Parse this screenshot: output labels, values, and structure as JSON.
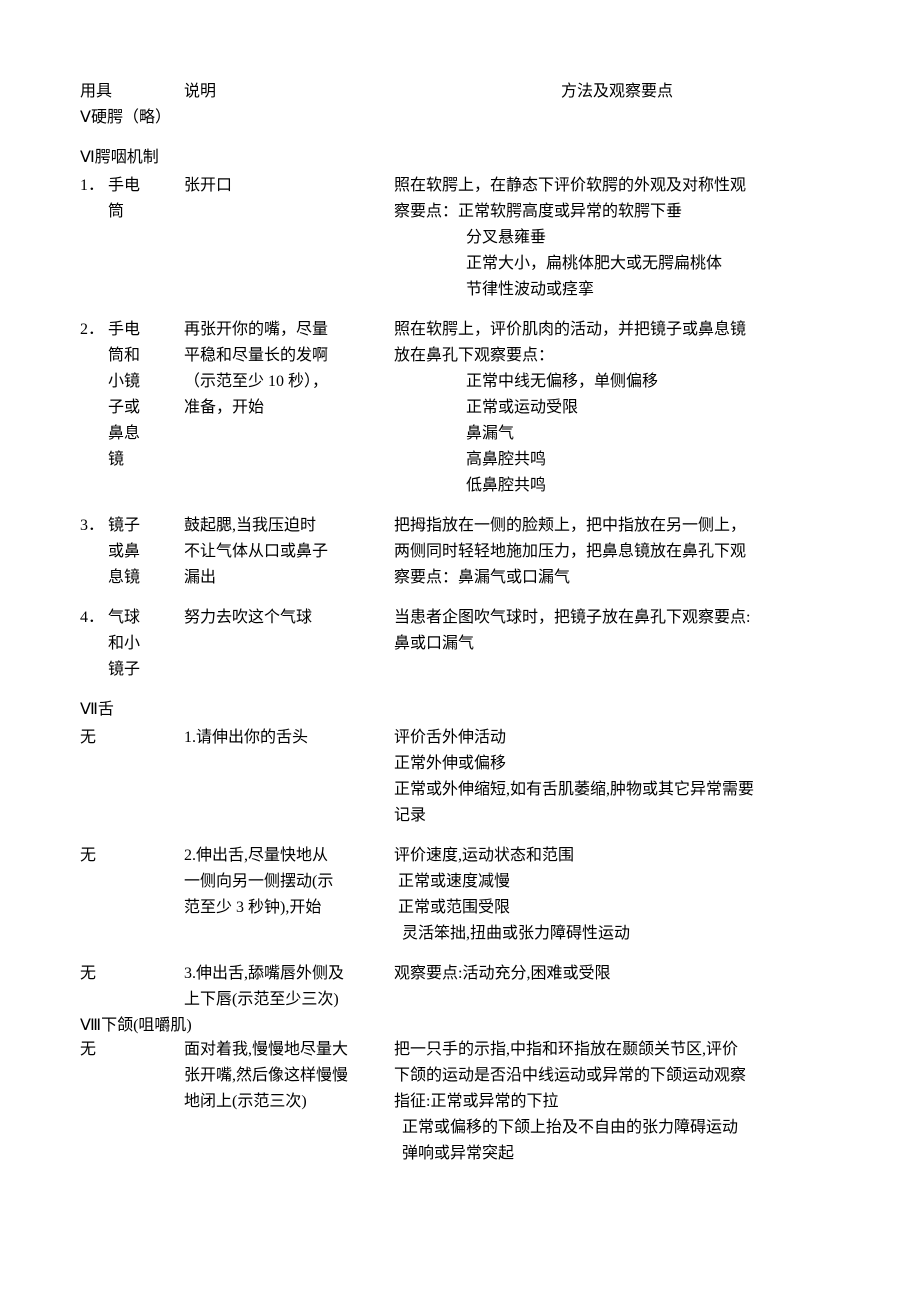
{
  "header": {
    "col1": "用具",
    "col2": "说明",
    "col3": "方法及观察要点"
  },
  "sec5": {
    "title": "Ⅴ硬腭（略）"
  },
  "sec6": {
    "title": "Ⅵ腭咽机制",
    "item1": {
      "num": "1．",
      "tool1": "手电",
      "tool2": "筒",
      "instr": "张开口",
      "m1": "照在软腭上，在静态下评价软腭的外观及对称性观",
      "m2": "察要点：正常软腭高度或异常的软腭下垂",
      "m3": "分叉悬雍垂",
      "m4": "正常大小，扁桃体肥大或无腭扁桃体",
      "m5": "节律性波动或痉挛"
    },
    "item2": {
      "num": "2．",
      "tool1": "手电",
      "tool2": "筒和",
      "tool3": "小镜",
      "tool4": "子或",
      "tool5": "鼻息",
      "tool6": "镜",
      "instr1": "再张开你的嘴，尽量",
      "instr2": "平稳和尽量长的发啊",
      "instr3": "（示范至少 10 秒），",
      "instr4": "准备，开始",
      "m1": "照在软腭上，评价肌肉的活动，并把镜子或鼻息镜",
      "m2": "放在鼻孔下观察要点：",
      "m3": "正常中线无偏移，单侧偏移",
      "m4": "正常或运动受限",
      "m5": "鼻漏气",
      "m6": "高鼻腔共鸣",
      "m7": "低鼻腔共鸣"
    },
    "item3": {
      "num": "3．",
      "tool1": "镜子",
      "tool2": "或鼻",
      "tool3": "息镜",
      "instr1": "鼓起腮,当我压迫时",
      "instr2": "不让气体从口或鼻子",
      "instr3": "漏出",
      "m1": "把拇指放在一侧的脸颊上，把中指放在另一侧上，",
      "m2": "两侧同时轻轻地施加压力，把鼻息镜放在鼻孔下观",
      "m3": "察要点：鼻漏气或口漏气"
    },
    "item4": {
      "num": "4．",
      "tool1": "气球",
      "tool2": "和小",
      "tool3": "镜子",
      "instr": "努力去吹这个气球",
      "m1": "当患者企图吹气球时，把镜子放在鼻孔下观察要点:",
      "m2": "鼻或口漏气"
    }
  },
  "sec7": {
    "title": "Ⅶ舌",
    "item1": {
      "tool": "无",
      "instr": "1.请伸出你的舌头",
      "m1": "评价舌外伸活动",
      "m2": "正常外伸或偏移",
      "m3": "正常或外伸缩短,如有舌肌萎缩,肿物或其它异常需要",
      "m4": "记录"
    },
    "item2": {
      "tool": "无",
      "instr1": "2.伸出舌,尽量快地从",
      "instr2": "一侧向另一侧摆动(示",
      "instr3": "范至少 3 秒钟),开始",
      "m1": "评价速度,运动状态和范围",
      "m2": " 正常或速度减慢",
      "m3": " 正常或范围受限",
      "m4": "  灵活笨拙,扭曲或张力障碍性运动"
    },
    "item3": {
      "tool": "无",
      "instr1": "3.伸出舌,舔嘴唇外侧及",
      "instr2": "上下唇(示范至少三次)",
      "m1": "观察要点:活动充分,困难或受限"
    }
  },
  "sec8": {
    "title": "Ⅷ下颌(咀嚼肌)",
    "item1": {
      "tool": "无",
      "instr1": "面对着我,慢慢地尽量大",
      "instr2": "张开嘴,然后像这样慢慢",
      "instr3": "地闭上(示范三次)",
      "m1": "把一只手的示指,中指和环指放在颞颌关节区,评价",
      "m2": "下颌的运动是否沿中线运动或异常的下颌运动观察",
      "m3": "指征:正常或异常的下拉",
      "m4": "  正常或偏移的下颌上抬及不自由的张力障碍运动",
      "m5": "  弹响或异常突起"
    }
  }
}
